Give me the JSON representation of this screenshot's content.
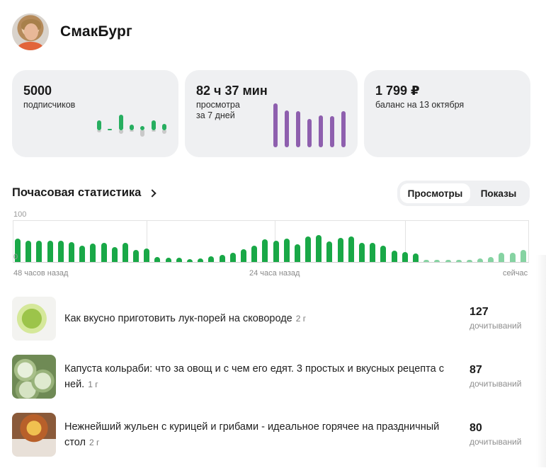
{
  "header": {
    "channel_name": "СмакБург",
    "avatar_icon": "avatar-photo"
  },
  "cards": [
    {
      "value": "5000",
      "label_lines": [
        "подписчиков"
      ],
      "mini_chart": {
        "type": "bar",
        "color_positive": "#27ae60",
        "color_negative": "#c9c9c9",
        "bars": [
          {
            "pos": 14,
            "neg": 3
          },
          {
            "pos": 2,
            "neg": 0
          },
          {
            "pos": 22,
            "neg": 5
          },
          {
            "pos": 8,
            "neg": 2
          },
          {
            "pos": 6,
            "neg": 9
          },
          {
            "pos": 14,
            "neg": 2
          },
          {
            "pos": 9,
            "neg": 5
          }
        ]
      }
    },
    {
      "value": "82 ч 37 мин",
      "label_lines": [
        "просмотра",
        "за 7 дней"
      ],
      "mini_chart": {
        "type": "bar",
        "color": "#8e5fae",
        "values": [
          62,
          52,
          51,
          40,
          45,
          44,
          51
        ]
      }
    },
    {
      "value": "1 799 ₽",
      "label_lines": [
        "баланс на 13 октября"
      ]
    }
  ],
  "hourly": {
    "title": "Почасовая статистика",
    "tabs": [
      {
        "label": "Просмотры",
        "active": true
      },
      {
        "label": "Показы",
        "active": false
      }
    ],
    "y_top": "100",
    "y_zero": "0",
    "x_labels": {
      "left": "48 часов назад",
      "middle": "24 часа назад",
      "right": "сейчас"
    }
  },
  "chart_data": {
    "type": "bar",
    "title": "Почасовая статистика",
    "xlabel": "",
    "ylabel": "",
    "ylim": [
      0,
      100
    ],
    "grid": true,
    "x_tick_labels": [
      "48 часов назад",
      "24 часа назад",
      "сейчас"
    ],
    "y_tick_labels": [
      "0",
      "100"
    ],
    "colors": {
      "past": "#19a847",
      "recent": "#86d3a2"
    },
    "series": [
      {
        "name": "Просмотры",
        "values": [
          55,
          50,
          50,
          50,
          50,
          47,
          38,
          43,
          45,
          35,
          45,
          28,
          32,
          12,
          10,
          10,
          7,
          8,
          13,
          17,
          22,
          30,
          38,
          53,
          50,
          55,
          42,
          60,
          63,
          48,
          57,
          60,
          45,
          45,
          38,
          27,
          23,
          20,
          5,
          5,
          5,
          5,
          5,
          8,
          12,
          22,
          22,
          28
        ],
        "highlight_recent_from_index": 38
      }
    ]
  },
  "articles": [
    {
      "title": "Как вкусно приготовить лук-порей на сковороде",
      "age": "2 г",
      "count": "127",
      "count_label": "дочитываний"
    },
    {
      "title": "Капуста кольраби: что за овощ и с чем его едят. 3 простых и вкусных рецепта с ней.",
      "age": "1 г",
      "count": "87",
      "count_label": "дочитываний"
    },
    {
      "title": "Нежнейший жульен с курицей и грибами - идеальное горячее на праздничный стол",
      "age": "2 г",
      "count": "80",
      "count_label": "дочитываний"
    }
  ]
}
